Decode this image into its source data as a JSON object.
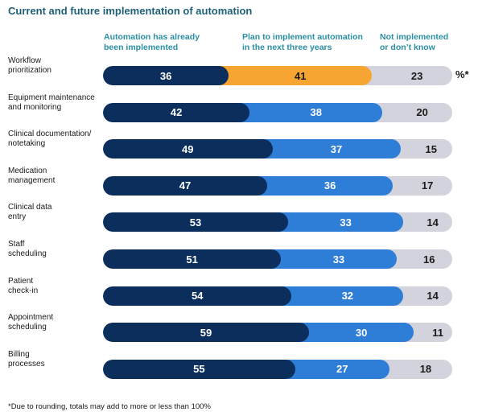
{
  "chart_data": {
    "type": "bar",
    "orientation": "horizontal",
    "stacked": true,
    "title": "Current and future implementation of automation",
    "series_names": [
      "Automation has already been implemented",
      "Plan to implement automation in the next three years",
      "Not implemented or don’t know"
    ],
    "categories": [
      "Workflow prioritization",
      "Equipment maintenance and monitoring",
      "Clinical documentation/ notetaking",
      "Medication management",
      "Clinical data entry",
      "Staff scheduling",
      "Patient check-in",
      "Appointment scheduling",
      "Billing processes"
    ],
    "category_lines": [
      [
        "Workflow",
        "prioritization"
      ],
      [
        "Equipment maintenance",
        "and monitoring"
      ],
      [
        "Clinical documentation/",
        "notetaking"
      ],
      [
        "Medication",
        "management"
      ],
      [
        "Clinical data",
        "entry"
      ],
      [
        "Staff",
        "scheduling"
      ],
      [
        "Patient",
        "check-in"
      ],
      [
        "Appointment",
        "scheduling"
      ],
      [
        "Billing",
        "processes"
      ]
    ],
    "series": [
      {
        "name": "Automation has already been implemented",
        "values": [
          36,
          42,
          49,
          47,
          53,
          51,
          54,
          59,
          55
        ]
      },
      {
        "name": "Plan to implement automation in the next three years",
        "values": [
          41,
          38,
          37,
          36,
          33,
          33,
          32,
          30,
          27
        ]
      },
      {
        "name": "Not implemented or don’t know",
        "values": [
          23,
          20,
          15,
          17,
          14,
          16,
          14,
          11,
          18
        ]
      }
    ],
    "unit_note": "%*",
    "highlight": {
      "category_index": 0,
      "series_index": 1,
      "color": "#f7a532"
    },
    "colors": {
      "implemented": "#0b2e5c",
      "planned": "#2e7dd6",
      "not_implemented": "#d3d3dd",
      "legend_text": "#2a8fa3",
      "title": "#1f5f78"
    },
    "legend_placement": "top",
    "grid": false
  },
  "legend": {
    "implemented": [
      "Automation has already",
      "been implemented"
    ],
    "planned": [
      "Plan to implement automation",
      "in the next three years"
    ],
    "not_implemented": [
      "Not implemented",
      "or don’t know"
    ]
  },
  "footnote": "*Due to rounding, totals may add to more or less than 100%"
}
